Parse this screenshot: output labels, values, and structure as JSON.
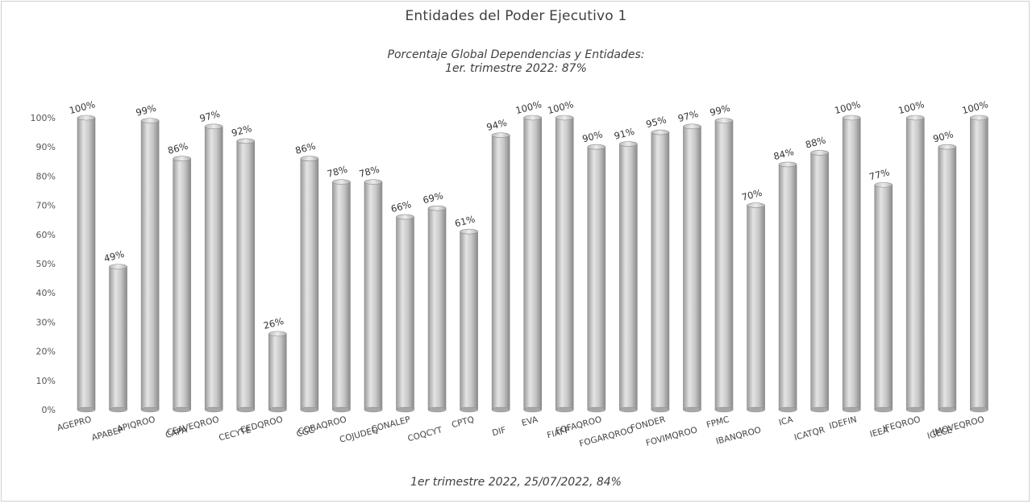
{
  "title": "Entidades del Poder Ejecutivo 1",
  "subtitle_line1": "Porcentaje Global  Dependencias y Entidades:",
  "subtitle_line2": "1er. trimestre 2022: 87%",
  "footer": "1er trimestre  2022,  25/07/2022, 84%",
  "colors": {
    "bar": "#b8b8b8",
    "bar_light": "#e2e2e2",
    "bar_dark": "#8e8e8e",
    "text": "#404040",
    "axis_text": "#555555"
  },
  "chart_data": {
    "type": "bar",
    "title": "Entidades del Poder Ejecutivo 1",
    "xlabel": "",
    "ylabel": "",
    "ylim": [
      0,
      100
    ],
    "yticks": [
      "0%",
      "10%",
      "20%",
      "30%",
      "40%",
      "50%",
      "60%",
      "70%",
      "80%",
      "90%",
      "100%"
    ],
    "grid": false,
    "legend": "none",
    "categories": [
      "AGEPRO",
      "APABEP",
      "APIQROO",
      "CAPA",
      "CEAVEQROO",
      "CECYTE",
      "CEDQROO",
      "CGC",
      "COBAQROO",
      "COJUDEQ",
      "CONALEP",
      "COQCYT",
      "CPTQ",
      "DIF",
      "EVA",
      "FIAFP",
      "FOFAQROO",
      "FOGARQROO",
      "FONDER",
      "FOVIMQROO",
      "FPMC",
      "IBANQROO",
      "ICA",
      "ICATQR",
      "IDEFIN",
      "IEEA",
      "IFEQROO",
      "IGECE",
      "IMOVEQROO"
    ],
    "values": [
      100,
      49,
      99,
      86,
      97,
      92,
      26,
      86,
      78,
      78,
      66,
      69,
      61,
      94,
      100,
      100,
      90,
      91,
      95,
      97,
      99,
      70,
      84,
      88,
      100,
      77,
      100,
      90,
      100
    ],
    "data_labels": [
      "100%",
      "49%",
      "99%",
      "86%",
      "97%",
      "92%",
      "26%",
      "86%",
      "78%",
      "78%",
      "66%",
      "69%",
      "61%",
      "94%",
      "100%",
      "100%",
      "90%",
      "91%",
      "95%",
      "97%",
      "99%",
      "70%",
      "84%",
      "88%",
      "100%",
      "77%",
      "100%",
      "90%",
      "100%"
    ]
  }
}
